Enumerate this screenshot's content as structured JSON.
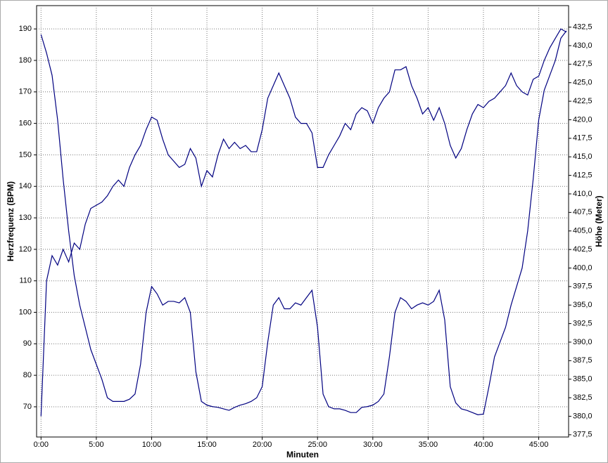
{
  "chart_data": {
    "type": "line",
    "xlabel": "Minuten",
    "ylabel": "Herzfrequenz (BPM)",
    "y2label": "Höhe (Meter)",
    "x": [
      0,
      0.5,
      1,
      1.5,
      2,
      2.5,
      3,
      3.5,
      4,
      4.5,
      5,
      5.5,
      6,
      6.5,
      7,
      7.5,
      8,
      8.5,
      9,
      9.5,
      10,
      10.5,
      11,
      11.5,
      12,
      12.5,
      13,
      13.5,
      14,
      14.5,
      15,
      15.5,
      16,
      16.5,
      17,
      17.5,
      18,
      18.5,
      19,
      19.5,
      20,
      20.5,
      21,
      21.5,
      22,
      22.5,
      23,
      23.5,
      24,
      24.5,
      25,
      25.5,
      26,
      26.5,
      27,
      27.5,
      28,
      28.5,
      29,
      29.5,
      30,
      30.5,
      31,
      31.5,
      32,
      32.5,
      33,
      33.5,
      34,
      34.5,
      35,
      35.5,
      36,
      36.5,
      37,
      37.5,
      38,
      38.5,
      39,
      39.5,
      40,
      40.5,
      41,
      41.5,
      42,
      42.5,
      43,
      43.5,
      44,
      44.5,
      45,
      45.5,
      46,
      46.5,
      47,
      47.5
    ],
    "series": [
      {
        "name": "Herzfrequenz (BPM)",
        "color": "#000080",
        "axis": "y",
        "values": [
          67,
          110,
          118,
          115,
          120,
          116,
          122,
          120,
          128,
          133,
          134,
          135,
          137,
          140,
          142,
          140,
          146,
          150,
          153,
          158,
          162,
          161,
          155,
          150,
          148,
          146,
          147,
          152,
          149,
          140,
          145,
          143,
          150,
          155,
          152,
          154,
          152,
          153,
          151,
          151,
          158,
          168,
          172,
          176,
          172,
          168,
          162,
          160,
          160,
          157,
          146,
          146,
          150,
          153,
          156,
          160,
          158,
          163,
          165,
          164,
          160,
          165,
          168,
          170,
          177,
          177,
          178,
          172,
          168,
          163,
          165,
          161,
          165,
          160,
          153,
          149,
          152,
          158,
          163,
          166,
          165,
          167,
          168,
          170,
          172,
          176,
          172,
          170,
          169,
          174,
          175,
          180,
          184,
          187,
          190,
          189
        ]
      },
      {
        "name": "Höhe (Meter)",
        "color": "#000080",
        "axis": "y2",
        "values": [
          431.5,
          429,
          426,
          420,
          412,
          405,
          399,
          395,
          392,
          389,
          387,
          385,
          382.5,
          382,
          382,
          382,
          382.3,
          383,
          387,
          394,
          397.5,
          396.5,
          395,
          395.5,
          395.5,
          395.3,
          396,
          394,
          386,
          382,
          381.5,
          381.3,
          381.2,
          381,
          380.8,
          381.2,
          381.5,
          381.7,
          382,
          382.5,
          384,
          390,
          395,
          396,
          394.5,
          394.5,
          395.3,
          395,
          396,
          397,
          392,
          383,
          381.3,
          381,
          381,
          380.8,
          380.5,
          380.5,
          381.2,
          381.3,
          381.5,
          382,
          383,
          388,
          394,
          396,
          395.5,
          394.5,
          395,
          395.3,
          395,
          395.5,
          397,
          393,
          384,
          381.8,
          381,
          380.8,
          380.5,
          380.2,
          380.3,
          384,
          388,
          390,
          392,
          395,
          397.5,
          400,
          405,
          412,
          420,
          424,
          426,
          428,
          431,
          432
        ]
      }
    ],
    "xlim": [
      -0.4,
      47.7
    ],
    "xticks": [
      {
        "value": 0,
        "label": "0:00"
      },
      {
        "value": 5,
        "label": "5:00"
      },
      {
        "value": 10,
        "label": "10:00"
      },
      {
        "value": 15,
        "label": "15:00"
      },
      {
        "value": 20,
        "label": "20:00"
      },
      {
        "value": 25,
        "label": "25:00"
      },
      {
        "value": 30,
        "label": "30:00"
      },
      {
        "value": 35,
        "label": "35:00"
      },
      {
        "value": 40,
        "label": "40:00"
      },
      {
        "value": 45,
        "label": "45:00"
      }
    ],
    "ylim": [
      60.4,
      197.4
    ],
    "yticks": [
      70,
      80,
      90,
      100,
      110,
      120,
      130,
      140,
      150,
      160,
      170,
      180,
      190
    ],
    "y2lim": [
      377.2,
      435.4
    ],
    "y2ticks": [
      {
        "value": 377.5,
        "label": "377,5"
      },
      {
        "value": 380,
        "label": "380,0"
      },
      {
        "value": 382.5,
        "label": "382,5"
      },
      {
        "value": 385,
        "label": "385,0"
      },
      {
        "value": 387.5,
        "label": "387,5"
      },
      {
        "value": 390,
        "label": "390,0"
      },
      {
        "value": 392.5,
        "label": "392,5"
      },
      {
        "value": 395,
        "label": "395,0"
      },
      {
        "value": 397.5,
        "label": "397,5"
      },
      {
        "value": 400,
        "label": "400,0"
      },
      {
        "value": 402.5,
        "label": "402,5"
      },
      {
        "value": 405,
        "label": "405,0"
      },
      {
        "value": 407.5,
        "label": "407,5"
      },
      {
        "value": 410,
        "label": "410,0"
      },
      {
        "value": 412.5,
        "label": "412,5"
      },
      {
        "value": 415,
        "label": "415,0"
      },
      {
        "value": 417.5,
        "label": "417,5"
      },
      {
        "value": 420,
        "label": "420,0"
      },
      {
        "value": 422.5,
        "label": "422,5"
      },
      {
        "value": 425,
        "label": "425,0"
      },
      {
        "value": 427.5,
        "label": "427,5"
      },
      {
        "value": 430,
        "label": "430,0"
      },
      {
        "value": 432.5,
        "label": "432,5"
      }
    ],
    "grid": true
  }
}
